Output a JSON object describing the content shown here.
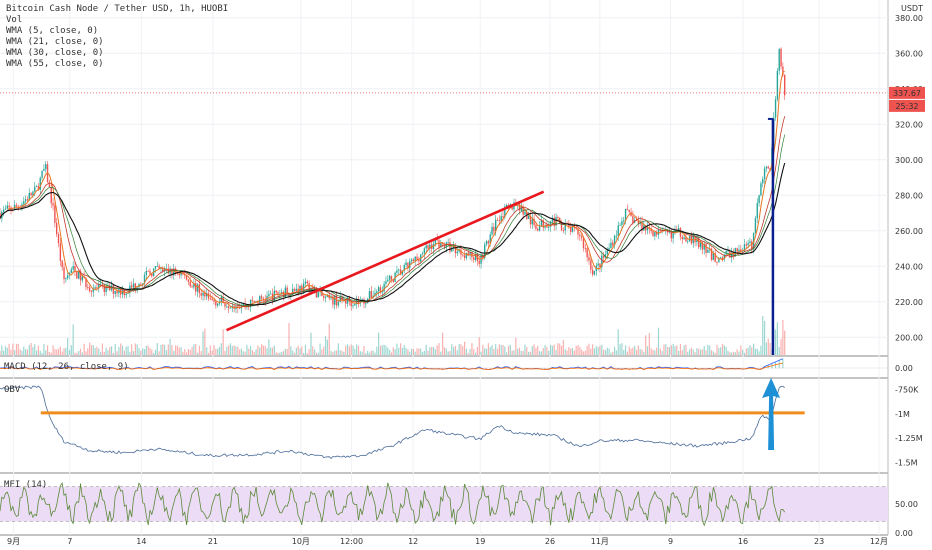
{
  "header": {
    "title": "Bitcoin Cash Node / Tether USD, 1h, HUOBI",
    "indicators": [
      "Vol",
      "WMA (5, close, 0)",
      "WMA (21, close, 0)",
      "WMA (30, close, 0)",
      "WMA (55, close, 0)"
    ],
    "currency": "USDT"
  },
  "price_tags": {
    "last": "337.67",
    "countdown": "25:32"
  },
  "panes": {
    "macd": "MACD (12, 26, close, 9)",
    "obv": "OBV",
    "mfi": "MFI (14)"
  },
  "colors": {
    "up": "#26a69a",
    "down": "#ef5350",
    "wma5": "#e8731f",
    "wma55": "#111111",
    "trend_red": "#e8181e",
    "obv_level": "#f08c1c",
    "vbar": "#0b1f8f",
    "arrow": "#1e90d6",
    "obv_line": "#4a6a9a",
    "mfi_line": "#5b8a3a",
    "mfi_band": "#ecdcf5"
  },
  "chart_data": {
    "type": "candlestick",
    "title": "Bitcoin Cash Node / Tether USD, 1h, HUOBI",
    "x_ticks": [
      "9月",
      "7",
      "14",
      "21",
      "10月",
      "12:00",
      "12",
      "19",
      "26",
      "11月",
      "9",
      "16",
      "23",
      "12月"
    ],
    "y_ticks": [
      "380.00",
      "360.00",
      "340.00",
      "320.00",
      "300.00",
      "280.00",
      "260.00",
      "240.00",
      "220.00",
      "200.00"
    ],
    "ylim": [
      190,
      390
    ],
    "price_path": [
      {
        "t": 0,
        "p": 270
      },
      {
        "t": 2,
        "p": 274
      },
      {
        "t": 4,
        "p": 283
      },
      {
        "t": 5,
        "p": 296
      },
      {
        "t": 6,
        "p": 268
      },
      {
        "t": 7,
        "p": 232
      },
      {
        "t": 8,
        "p": 238
      },
      {
        "t": 10,
        "p": 228
      },
      {
        "t": 14,
        "p": 226
      },
      {
        "t": 17,
        "p": 238
      },
      {
        "t": 20,
        "p": 236
      },
      {
        "t": 23,
        "p": 221
      },
      {
        "t": 27,
        "p": 218
      },
      {
        "t": 31,
        "p": 225
      },
      {
        "t": 34,
        "p": 229
      },
      {
        "t": 36,
        "p": 221
      },
      {
        "t": 40,
        "p": 220
      },
      {
        "t": 42,
        "p": 228
      },
      {
        "t": 45,
        "p": 240
      },
      {
        "t": 48,
        "p": 254
      },
      {
        "t": 50,
        "p": 250
      },
      {
        "t": 53,
        "p": 244
      },
      {
        "t": 55,
        "p": 268
      },
      {
        "t": 57,
        "p": 276
      },
      {
        "t": 59,
        "p": 262
      },
      {
        "t": 61,
        "p": 266
      },
      {
        "t": 64,
        "p": 258
      },
      {
        "t": 65.5,
        "p": 236
      },
      {
        "t": 67,
        "p": 248
      },
      {
        "t": 69,
        "p": 270
      },
      {
        "t": 71,
        "p": 262
      },
      {
        "t": 73,
        "p": 258
      },
      {
        "t": 75,
        "p": 259
      },
      {
        "t": 77,
        "p": 253
      },
      {
        "t": 79,
        "p": 244
      },
      {
        "t": 81,
        "p": 248
      },
      {
        "t": 83,
        "p": 252
      },
      {
        "t": 84,
        "p": 290
      },
      {
        "t": 85,
        "p": 296
      },
      {
        "t": 86,
        "p": 364
      },
      {
        "t": 86.6,
        "p": 338
      }
    ],
    "obv_path": [
      {
        "t": 0,
        "p": -0.74
      },
      {
        "t": 4.5,
        "p": -0.72
      },
      {
        "t": 5.5,
        "p": -1.05
      },
      {
        "t": 7,
        "p": -1.28
      },
      {
        "t": 10,
        "p": -1.38
      },
      {
        "t": 14,
        "p": -1.4
      },
      {
        "t": 17,
        "p": -1.36
      },
      {
        "t": 23,
        "p": -1.43
      },
      {
        "t": 28,
        "p": -1.42
      },
      {
        "t": 32,
        "p": -1.38
      },
      {
        "t": 36,
        "p": -1.45
      },
      {
        "t": 40,
        "p": -1.43
      },
      {
        "t": 43,
        "p": -1.34
      },
      {
        "t": 47,
        "p": -1.16
      },
      {
        "t": 49,
        "p": -1.2
      },
      {
        "t": 53,
        "p": -1.26
      },
      {
        "t": 55,
        "p": -1.12
      },
      {
        "t": 57,
        "p": -1.2
      },
      {
        "t": 61,
        "p": -1.22
      },
      {
        "t": 64,
        "p": -1.34
      },
      {
        "t": 66,
        "p": -1.28
      },
      {
        "t": 70,
        "p": -1.27
      },
      {
        "t": 73,
        "p": -1.3
      },
      {
        "t": 77,
        "p": -1.33
      },
      {
        "t": 80,
        "p": -1.3
      },
      {
        "t": 83,
        "p": -1.25
      },
      {
        "t": 84,
        "p": -1.02
      },
      {
        "t": 85,
        "p": -1.06
      },
      {
        "t": 86,
        "p": -0.72
      }
    ],
    "obv_ticks": [
      "-750K",
      "-1M",
      "-1.25M",
      "-1.5M"
    ],
    "obv_ylim": [
      -1.6,
      -0.65
    ],
    "macd_ticks": [
      "0.00"
    ],
    "mfi_ticks": [
      "50.00",
      "0.00"
    ],
    "mfi_ylim": [
      0,
      100
    ],
    "annotations": {
      "trendline_red": {
        "from": {
          "t": 25,
          "p": 204
        },
        "to": {
          "t": 60,
          "p": 282
        }
      },
      "obv_level": -0.99,
      "vertical_bar_t": 85.3
    },
    "grid": true
  }
}
